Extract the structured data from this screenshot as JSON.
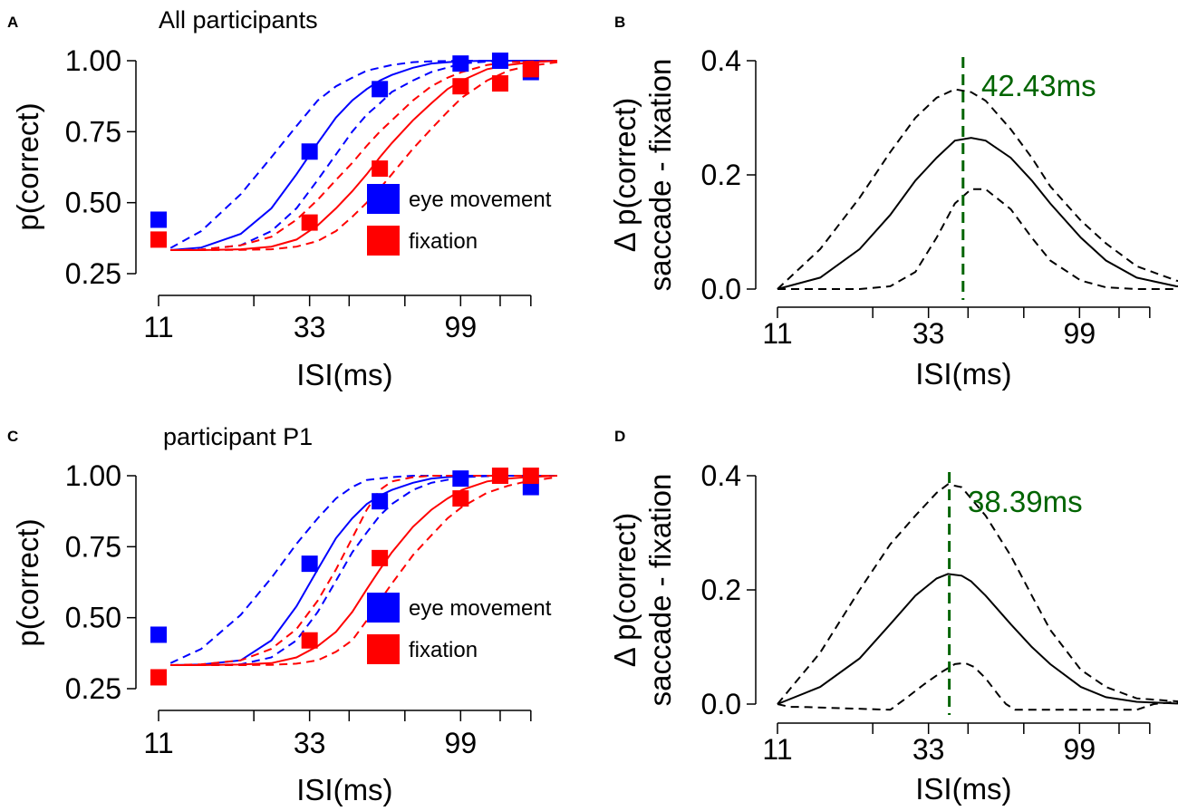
{
  "figure": {
    "colors": {
      "eye_movement": "#0000ff",
      "fixation": "#ff0000",
      "annotation": "#006400",
      "axis": "#000000"
    }
  },
  "chart_data": [
    {
      "panel": "A",
      "type": "line",
      "title": "All participants",
      "xlabel": "ISI(ms)",
      "ylabel": "p(correct)",
      "xscale": "log",
      "xlim": [
        11,
        200
      ],
      "ylim": [
        0.25,
        1.0
      ],
      "xticks": [
        11,
        33,
        99
      ],
      "xtick_labels": [
        "11",
        "33",
        "99"
      ],
      "minor_xticks": [
        22,
        44,
        66,
        132,
        165
      ],
      "yticks": [
        0.25,
        0.5,
        0.75,
        1.0
      ],
      "ytick_labels": [
        "0.25",
        "0.50",
        "0.75",
        "1.00"
      ],
      "legend": {
        "position": "center-right",
        "entries": [
          "eye movement",
          "fixation"
        ]
      },
      "points": [
        {
          "name": "eye movement",
          "x": [
            11,
            33,
            55,
            99,
            132,
            165
          ],
          "y": [
            0.44,
            0.68,
            0.9,
            0.99,
            1.0,
            0.96
          ]
        },
        {
          "name": "fixation",
          "x": [
            11,
            33,
            55,
            99,
            132,
            165
          ],
          "y": [
            0.37,
            0.43,
            0.62,
            0.91,
            0.92,
            0.97
          ]
        }
      ],
      "series": [
        {
          "name": "eye movement fit",
          "style": "solid",
          "x": [
            12,
            15,
            20,
            25,
            30,
            35,
            40,
            45,
            50,
            55,
            60,
            70,
            80,
            90,
            100,
            120,
            140,
            160,
            200
          ],
          "y": [
            0.333,
            0.342,
            0.39,
            0.48,
            0.6,
            0.71,
            0.8,
            0.86,
            0.9,
            0.93,
            0.95,
            0.975,
            0.99,
            0.995,
            0.998,
            1.0,
            1.0,
            1.0,
            1.0
          ]
        },
        {
          "name": "eye movement CI upper",
          "style": "dashed",
          "x": [
            12,
            15,
            20,
            25,
            30,
            35,
            40,
            45,
            50,
            60,
            70,
            80,
            100,
            130,
            200
          ],
          "y": [
            0.34,
            0.4,
            0.53,
            0.66,
            0.77,
            0.86,
            0.91,
            0.94,
            0.965,
            0.985,
            0.995,
            0.998,
            1.0,
            1.0,
            1.0
          ]
        },
        {
          "name": "eye movement CI lower",
          "style": "dashed",
          "x": [
            12,
            15,
            20,
            25,
            30,
            35,
            40,
            45,
            50,
            55,
            60,
            70,
            80,
            100,
            130,
            200
          ],
          "y": [
            0.333,
            0.335,
            0.35,
            0.4,
            0.48,
            0.58,
            0.67,
            0.75,
            0.81,
            0.85,
            0.89,
            0.93,
            0.96,
            0.99,
            1.0,
            1.0
          ]
        },
        {
          "name": "fixation fit",
          "style": "solid",
          "x": [
            12,
            15,
            20,
            25,
            30,
            35,
            40,
            45,
            50,
            55,
            60,
            70,
            80,
            90,
            100,
            120,
            140,
            160,
            200
          ],
          "y": [
            0.333,
            0.333,
            0.336,
            0.345,
            0.37,
            0.42,
            0.48,
            0.54,
            0.6,
            0.66,
            0.71,
            0.79,
            0.85,
            0.9,
            0.93,
            0.97,
            0.985,
            0.993,
            1.0
          ]
        },
        {
          "name": "fixation CI upper",
          "style": "dashed",
          "x": [
            12,
            15,
            20,
            25,
            30,
            35,
            40,
            45,
            50,
            55,
            60,
            70,
            80,
            90,
            100,
            120,
            140,
            200
          ],
          "y": [
            0.333,
            0.335,
            0.35,
            0.38,
            0.44,
            0.51,
            0.58,
            0.64,
            0.7,
            0.75,
            0.79,
            0.86,
            0.91,
            0.94,
            0.96,
            0.985,
            0.995,
            1.0
          ]
        },
        {
          "name": "fixation CI lower",
          "style": "dashed",
          "x": [
            12,
            15,
            20,
            25,
            30,
            35,
            40,
            45,
            50,
            55,
            60,
            70,
            80,
            90,
            100,
            120,
            140,
            160,
            200
          ],
          "y": [
            0.333,
            0.333,
            0.334,
            0.336,
            0.345,
            0.365,
            0.4,
            0.45,
            0.5,
            0.55,
            0.6,
            0.69,
            0.76,
            0.82,
            0.87,
            0.93,
            0.965,
            0.98,
            0.995
          ]
        }
      ]
    },
    {
      "panel": "B",
      "type": "line",
      "title": "",
      "xlabel": "ISI(ms)",
      "ylabel": "Δ p(correct)",
      "ylabel2": "saccade - fixation",
      "xscale": "log",
      "xlim": [
        11,
        200
      ],
      "ylim": [
        0.0,
        0.4
      ],
      "xticks": [
        11,
        33,
        99
      ],
      "xtick_labels": [
        "11",
        "33",
        "99"
      ],
      "minor_xticks": [
        22,
        44,
        66,
        132,
        165
      ],
      "yticks": [
        0.0,
        0.2,
        0.4
      ],
      "ytick_labels": [
        "0.0",
        "0.2",
        "0.4"
      ],
      "vline": {
        "x": 42.43,
        "label": "42.43ms"
      },
      "series": [
        {
          "name": "difference",
          "style": "solid",
          "x": [
            11,
            15,
            20,
            25,
            30,
            35,
            40,
            45,
            50,
            60,
            70,
            80,
            100,
            120,
            150,
            200,
            280
          ],
          "y": [
            0.0,
            0.02,
            0.07,
            0.13,
            0.19,
            0.23,
            0.26,
            0.265,
            0.26,
            0.23,
            0.19,
            0.15,
            0.09,
            0.05,
            0.02,
            0.005,
            0.0
          ]
        },
        {
          "name": "CI upper",
          "style": "dashed",
          "x": [
            11,
            15,
            20,
            25,
            30,
            35,
            40,
            45,
            50,
            60,
            70,
            80,
            100,
            120,
            150,
            200,
            280
          ],
          "y": [
            0.0,
            0.07,
            0.16,
            0.24,
            0.3,
            0.335,
            0.35,
            0.345,
            0.33,
            0.28,
            0.23,
            0.18,
            0.12,
            0.08,
            0.04,
            0.015,
            0.0
          ]
        },
        {
          "name": "CI lower",
          "style": "dashed",
          "x": [
            11,
            15,
            20,
            25,
            30,
            35,
            40,
            45,
            50,
            60,
            70,
            80,
            100,
            120,
            150,
            200,
            280
          ],
          "y": [
            0.0,
            0.0,
            0.0,
            0.005,
            0.03,
            0.09,
            0.15,
            0.175,
            0.175,
            0.14,
            0.09,
            0.05,
            0.015,
            0.003,
            0.0,
            0.0,
            0.0
          ]
        }
      ]
    },
    {
      "panel": "C",
      "type": "line",
      "title": "participant P1",
      "xlabel": "ISI(ms)",
      "ylabel": "p(correct)",
      "xscale": "log",
      "xlim": [
        11,
        200
      ],
      "ylim": [
        0.25,
        1.0
      ],
      "xticks": [
        11,
        33,
        99
      ],
      "xtick_labels": [
        "11",
        "33",
        "99"
      ],
      "minor_xticks": [
        22,
        44,
        66,
        132,
        165
      ],
      "yticks": [
        0.25,
        0.5,
        0.75,
        1.0
      ],
      "ytick_labels": [
        "0.25",
        "0.50",
        "0.75",
        "1.00"
      ],
      "legend": {
        "position": "center-right",
        "entries": [
          "eye movement",
          "fixation"
        ]
      },
      "points": [
        {
          "name": "eye movement",
          "x": [
            11,
            33,
            55,
            99,
            132,
            165
          ],
          "y": [
            0.44,
            0.69,
            0.91,
            0.99,
            1.0,
            0.96
          ]
        },
        {
          "name": "fixation",
          "x": [
            11,
            33,
            55,
            99,
            132,
            165
          ],
          "y": [
            0.29,
            0.42,
            0.71,
            0.92,
            1.0,
            1.0
          ]
        }
      ],
      "series": [
        {
          "name": "eye movement fit",
          "style": "solid",
          "x": [
            12,
            15,
            20,
            25,
            30,
            35,
            40,
            45,
            50,
            55,
            60,
            70,
            80,
            100,
            130,
            200
          ],
          "y": [
            0.333,
            0.335,
            0.35,
            0.42,
            0.54,
            0.67,
            0.78,
            0.85,
            0.9,
            0.93,
            0.95,
            0.975,
            0.99,
            1.0,
            1.0,
            1.0
          ]
        },
        {
          "name": "eye movement CI upper",
          "style": "dashed",
          "x": [
            12,
            15,
            20,
            25,
            30,
            35,
            40,
            45,
            50,
            60,
            70,
            80,
            100,
            130,
            200
          ],
          "y": [
            0.34,
            0.39,
            0.51,
            0.64,
            0.76,
            0.85,
            0.92,
            0.96,
            0.985,
            0.995,
            1.0,
            1.0,
            1.0,
            1.0,
            1.0
          ]
        },
        {
          "name": "eye movement CI lower",
          "style": "dashed",
          "x": [
            12,
            15,
            20,
            25,
            30,
            35,
            40,
            45,
            50,
            55,
            60,
            70,
            80,
            100,
            130,
            200
          ],
          "y": [
            0.333,
            0.333,
            0.336,
            0.36,
            0.42,
            0.52,
            0.63,
            0.73,
            0.8,
            0.86,
            0.9,
            0.95,
            0.975,
            0.995,
            1.0,
            1.0
          ]
        },
        {
          "name": "fixation fit",
          "style": "solid",
          "x": [
            12,
            15,
            20,
            25,
            30,
            35,
            40,
            45,
            50,
            55,
            60,
            70,
            80,
            90,
            100,
            120,
            140,
            160,
            200
          ],
          "y": [
            0.333,
            0.333,
            0.335,
            0.34,
            0.36,
            0.4,
            0.45,
            0.52,
            0.6,
            0.67,
            0.73,
            0.82,
            0.88,
            0.92,
            0.95,
            0.98,
            0.99,
            0.995,
            1.0
          ]
        },
        {
          "name": "fixation CI upper",
          "style": "dashed",
          "x": [
            12,
            15,
            20,
            25,
            30,
            35,
            40,
            45,
            50,
            55,
            60,
            70,
            80,
            100,
            120,
            200
          ],
          "y": [
            0.333,
            0.336,
            0.35,
            0.39,
            0.46,
            0.56,
            0.67,
            0.78,
            0.88,
            0.95,
            0.98,
            0.995,
            1.0,
            1.0,
            1.0,
            1.0
          ]
        },
        {
          "name": "fixation CI lower",
          "style": "dashed",
          "x": [
            12,
            15,
            20,
            25,
            30,
            35,
            40,
            45,
            50,
            55,
            60,
            70,
            80,
            90,
            100,
            120,
            140,
            160,
            200
          ],
          "y": [
            0.333,
            0.333,
            0.333,
            0.334,
            0.338,
            0.35,
            0.38,
            0.42,
            0.49,
            0.56,
            0.62,
            0.72,
            0.79,
            0.85,
            0.89,
            0.94,
            0.965,
            0.98,
            0.995
          ]
        }
      ]
    },
    {
      "panel": "D",
      "type": "line",
      "title": "",
      "xlabel": "ISI(ms)",
      "ylabel": "Δ p(correct)",
      "ylabel2": "saccade - fixation",
      "xscale": "log",
      "xlim": [
        11,
        200
      ],
      "ylim": [
        0.0,
        0.4
      ],
      "xticks": [
        11,
        33,
        99
      ],
      "xtick_labels": [
        "11",
        "33",
        "99"
      ],
      "minor_xticks": [
        22,
        44,
        66,
        132,
        165
      ],
      "yticks": [
        0.0,
        0.2,
        0.4
      ],
      "ytick_labels": [
        "0.0",
        "0.2",
        "0.4"
      ],
      "vline": {
        "x": 38.39,
        "label": "38.39ms"
      },
      "series": [
        {
          "name": "difference",
          "style": "solid",
          "x": [
            11,
            15,
            20,
            25,
            30,
            35,
            38,
            42,
            45,
            50,
            60,
            70,
            80,
            100,
            120,
            150,
            200,
            280
          ],
          "y": [
            0.0,
            0.03,
            0.08,
            0.14,
            0.19,
            0.22,
            0.228,
            0.225,
            0.215,
            0.19,
            0.14,
            0.1,
            0.07,
            0.03,
            0.012,
            0.004,
            0.001,
            0.0
          ]
        },
        {
          "name": "CI upper",
          "style": "dashed",
          "x": [
            11,
            15,
            20,
            25,
            30,
            35,
            38,
            42,
            45,
            50,
            60,
            70,
            80,
            100,
            120,
            150,
            200,
            280
          ],
          "y": [
            0.0,
            0.09,
            0.2,
            0.28,
            0.33,
            0.37,
            0.385,
            0.38,
            0.36,
            0.33,
            0.26,
            0.19,
            0.13,
            0.06,
            0.03,
            0.01,
            0.005,
            0.0
          ]
        },
        {
          "name": "CI lower",
          "style": "dashed",
          "x": [
            11,
            12,
            13,
            25,
            28,
            32,
            36,
            40,
            43,
            46,
            50,
            55,
            58,
            62,
            150,
            170,
            200,
            280
          ],
          "y": [
            0.0,
            -0.005,
            -0.005,
            -0.01,
            0.01,
            0.035,
            0.055,
            0.07,
            0.072,
            0.065,
            0.045,
            0.015,
            0.0,
            -0.01,
            -0.01,
            0.0,
            0.004,
            0.0
          ]
        }
      ]
    }
  ]
}
